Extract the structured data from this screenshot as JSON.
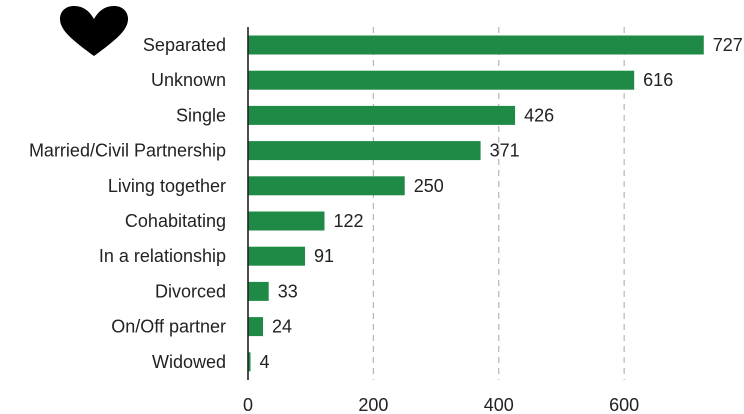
{
  "chart_data": {
    "type": "bar",
    "orientation": "horizontal",
    "categories": [
      "Separated",
      "Unknown",
      "Single",
      "Married/Civil Partnership",
      "Living together",
      "Cohabitating",
      "In a relationship",
      "Divorced",
      "On/Off partner",
      "Widowed"
    ],
    "values": [
      727,
      616,
      426,
      371,
      250,
      122,
      91,
      33,
      24,
      4
    ],
    "data_labels": [
      "727",
      "616",
      "426",
      "371",
      "250",
      "122",
      "91",
      "33",
      "24",
      "4"
    ],
    "x_ticks": [
      "0",
      "200",
      "400",
      "600"
    ],
    "x_tick_values": [
      0,
      200,
      400,
      600
    ],
    "xlim": [
      0,
      780
    ],
    "title": "",
    "xlabel": "",
    "ylabel": "",
    "grid": "vertical dashed",
    "bar_color": "#1f8a45",
    "icon": "heart-icon"
  }
}
